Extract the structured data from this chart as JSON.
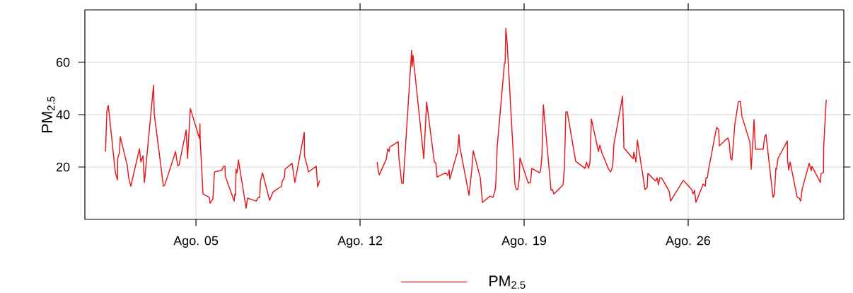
{
  "chart_data": {
    "type": "line",
    "ylabel": "PM$_{2.5}$",
    "xlim": [
      0.26,
      32.64
    ],
    "ylim": [
      0,
      80
    ],
    "xticks": [
      {
        "value": 5,
        "label": "Ago. 05"
      },
      {
        "value": 12,
        "label": "Ago. 12"
      },
      {
        "value": 19,
        "label": "Ago. 19"
      },
      {
        "value": 26,
        "label": "Ago. 26"
      }
    ],
    "yticks": [
      20,
      40,
      60
    ],
    "grid": true,
    "legend": "bottom",
    "marker": "none",
    "line_style": "solid",
    "series": [
      {
        "name": "PM$_{2.5}$",
        "color": "#e41a1c",
        "x": [
          1.14,
          1.2,
          1.26,
          1.56,
          1.65,
          1.66,
          1.74,
          1.77,
          2.07,
          2.13,
          2.22,
          2.59,
          2.65,
          2.74,
          2.8,
          3.19,
          3.22,
          3.61,
          3.67,
          4.13,
          4.22,
          4.28,
          4.58,
          4.64,
          4.76,
          5.15,
          5.17,
          5.18,
          5.3,
          5.57,
          5.6,
          5.72,
          5.79,
          6.0,
          6.09,
          6.18,
          6.24,
          6.25,
          6.63,
          6.66,
          6.69,
          6.71,
          6.75,
          6.81,
          7.14,
          7.2,
          7.57,
          7.66,
          7.72,
          7.75,
          7.84,
          8.14,
          8.29,
          8.65,
          8.68,
          8.77,
          8.8,
          9.1,
          9.22,
          9.62,
          9.63,
          9.74,
          9.8,
          10.13,
          10.19,
          10.28,
          11.5,
          12.73,
          12.76,
          12.82,
          13.12,
          13.18,
          13.24,
          13.27,
          13.63,
          13.66,
          13.78,
          13.84,
          14.2,
          14.22,
          14.26,
          14.72,
          14.84,
          15.17,
          15.23,
          15.29,
          15.65,
          15.74,
          15.8,
          15.83,
          16.16,
          16.22,
          16.25,
          16.65,
          16.77,
          16.83,
          17.13,
          17.22,
          17.55,
          17.67,
          17.76,
          17.79,
          17.85,
          18.16,
          18.19,
          18.22,
          18.28,
          18.61,
          18.67,
          18.73,
          18.79,
          18.82,
          19.18,
          19.21,
          19.27,
          19.33,
          19.66,
          19.7,
          19.76,
          19.82,
          20.15,
          20.21,
          20.27,
          20.66,
          20.72,
          20.78,
          20.84,
          21.2,
          21.6,
          21.66,
          21.75,
          21.81,
          21.87,
          22.17,
          22.23,
          22.32,
          22.59,
          22.69,
          22.77,
          22.8,
          22.83,
          23.2,
          23.26,
          23.65,
          23.68,
          23.77,
          23.83,
          24.16,
          24.25,
          24.28,
          24.61,
          24.67,
          24.73,
          24.79,
          24.86,
          25.19,
          25.25,
          25.79,
          26.15,
          26.21,
          26.27,
          26.33,
          26.64,
          26.73,
          26.76,
          26.82,
          26.85,
          27.21,
          27.3,
          27.33,
          27.69,
          27.75,
          27.81,
          27.87,
          27.99,
          28.14,
          28.23,
          28.29,
          28.63,
          28.69,
          28.81,
          28.87,
          29.2,
          29.26,
          29.32,
          29.62,
          29.68,
          29.74,
          29.77,
          29.83,
          30.23,
          30.24,
          30.29,
          30.35,
          30.65,
          30.74,
          30.8,
          30.86,
          31.16,
          31.25,
          31.28,
          31.64,
          31.67,
          31.77,
          31.78,
          31.89
        ],
        "values": [
          25.9,
          41.6,
          43.5,
          17.8,
          15.1,
          23.2,
          25.7,
          31.6,
          20.5,
          15.9,
          12.7,
          27.0,
          21.9,
          24.3,
          14.1,
          51.3,
          40.3,
          12.7,
          13.2,
          25.9,
          20.5,
          20.8,
          34.1,
          23.2,
          42.4,
          30.8,
          36.5,
          30.3,
          9.7,
          8.4,
          6.2,
          7.8,
          18.1,
          18.6,
          18.7,
          20.3,
          20.3,
          16.5,
          7.0,
          9.7,
          9.2,
          19.2,
          17.8,
          22.7,
          4.3,
          8.1,
          7.0,
          8.4,
          8.4,
          14.6,
          17.8,
          7.3,
          10.5,
          12.7,
          14.6,
          15.9,
          19.2,
          21.4,
          14.1,
          33.2,
          24.3,
          20.5,
          18.1,
          20.3,
          12.4,
          14.9,
          null,
          21.9,
          19.5,
          17.0,
          23.0,
          27.0,
          25.9,
          27.6,
          29.7,
          23.5,
          13.8,
          13.8,
          64.6,
          58.4,
          62.7,
          23.2,
          44.9,
          21.9,
          21.6,
          16.2,
          17.8,
          16.8,
          18.9,
          15.4,
          25.9,
          32.4,
          28.1,
          9.2,
          19.2,
          26.2,
          15.9,
          6.5,
          8.9,
          8.4,
          11.1,
          13.2,
          27.6,
          59.5,
          59.7,
          73.0,
          66.8,
          13.2,
          11.4,
          11.4,
          15.4,
          23.5,
          13.8,
          14.1,
          14.1,
          19.5,
          17.8,
          18.6,
          24.1,
          43.8,
          11.1,
          11.4,
          9.7,
          13.2,
          19.5,
          41.1,
          41.1,
          22.2,
          19.5,
          21.9,
          19.5,
          21.9,
          38.4,
          25.9,
          28.4,
          25.4,
          19.5,
          18.1,
          20.0,
          23.2,
          28.6,
          47.0,
          27.3,
          23.2,
          25.7,
          21.9,
          30.3,
          11.4,
          12.2,
          17.6,
          14.6,
          15.9,
          13.2,
          15.9,
          15.9,
          10.8,
          7.0,
          14.9,
          11.4,
          9.7,
          11.1,
          6.5,
          13.5,
          12.7,
          15.9,
          15.9,
          18.1,
          35.1,
          34.3,
          28.1,
          31.1,
          29.5,
          23.2,
          22.7,
          36.2,
          44.9,
          45.1,
          39.5,
          29.5,
          19.2,
          38.1,
          26.8,
          26.8,
          31.6,
          32.4,
          8.4,
          9.7,
          19.5,
          19.2,
          23.2,
          30.0,
          22.7,
          18.9,
          21.9,
          8.4,
          8.1,
          7.0,
          11.4,
          21.4,
          18.6,
          20.3,
          14.1,
          17.6,
          17.8,
          27.6,
          45.7
        ]
      }
    ]
  }
}
